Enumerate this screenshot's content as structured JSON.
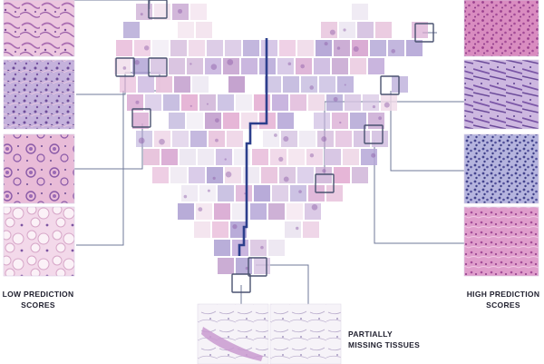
{
  "labels": {
    "low_prediction_line1": "LOW PREDICTION",
    "low_prediction_line2": "SCORES",
    "high_prediction_line1": "HIGH PREDICTION",
    "high_prediction_line2": "SCORES",
    "missing_line1": "PARTIALLY",
    "missing_line2": "MISSING TISSUES"
  },
  "colors": {
    "connector": "#6f7898",
    "boundary": "#2c3f8c",
    "highlight_box": "#4a5270",
    "tile_pink": "#e7b6d6",
    "tile_purple": "#b4a6d6",
    "tile_pale": "#ece8f2",
    "stain_deep": "#8c5aa6",
    "stain_light": "#f2dcec"
  },
  "panels": {
    "left": [
      {
        "name": "low-score-patch-1",
        "tone": "pink-gland"
      },
      {
        "name": "low-score-patch-2",
        "tone": "purple-dense"
      },
      {
        "name": "low-score-patch-3",
        "tone": "pink-nests"
      },
      {
        "name": "low-score-patch-4",
        "tone": "fatty-stroma"
      }
    ],
    "right": [
      {
        "name": "high-score-patch-1",
        "tone": "pink-dense"
      },
      {
        "name": "high-score-patch-2",
        "tone": "purple-strand"
      },
      {
        "name": "high-score-patch-3",
        "tone": "blue-cellular"
      },
      {
        "name": "high-score-patch-4",
        "tone": "pink-cellular"
      }
    ],
    "bottom": [
      {
        "name": "missing-tissue-patch-1",
        "tone": "sparse-strip"
      },
      {
        "name": "missing-tissue-patch-2",
        "tone": "sparse-fibers"
      }
    ]
  }
}
